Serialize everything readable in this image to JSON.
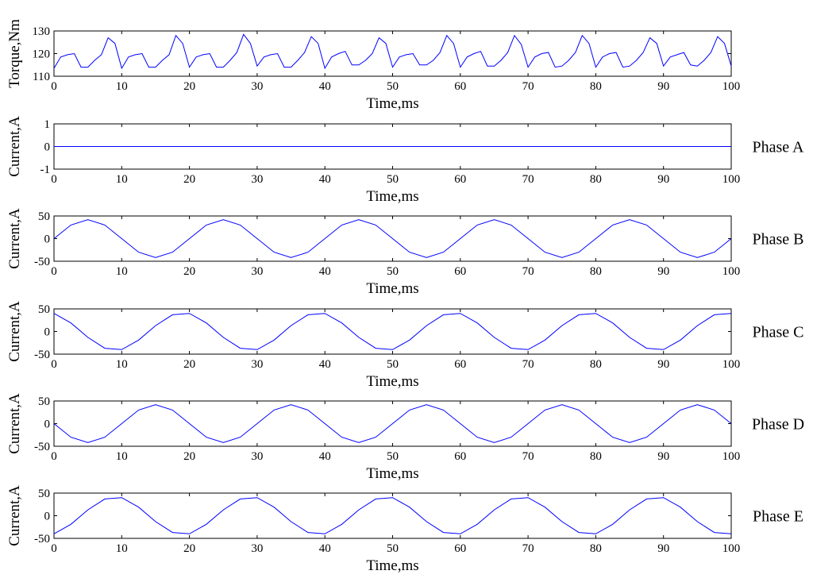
{
  "colors": {
    "trace": "#0000ff",
    "axes": "#000000",
    "background": "#ffffff"
  },
  "chart_data": [
    {
      "type": "line",
      "xlabel": "Time,ms",
      "ylabel": "Torque,Nm",
      "side_label": "",
      "xlim": [
        0,
        100
      ],
      "ylim": [
        110,
        130
      ],
      "xticks": [
        0,
        10,
        20,
        30,
        40,
        50,
        60,
        70,
        80,
        90,
        100
      ],
      "yticks": [
        110,
        120,
        130
      ],
      "grid": false,
      "series": [
        {
          "x": [
            0,
            1,
            2,
            3,
            4,
            5,
            6,
            7,
            8,
            9,
            10,
            11,
            12,
            13,
            14,
            15,
            16,
            17,
            18,
            19,
            20,
            21,
            22,
            23,
            24,
            25,
            26,
            27,
            28,
            29,
            30,
            31,
            32,
            33,
            34,
            35,
            36,
            37,
            38,
            39,
            40,
            41,
            42,
            43,
            44,
            45,
            46,
            47,
            48,
            49,
            50,
            51,
            52,
            53,
            54,
            55,
            56,
            57,
            58,
            59,
            60,
            61,
            62,
            63,
            64,
            65,
            66,
            67,
            68,
            69,
            70,
            71,
            72,
            73,
            74,
            75,
            76,
            77,
            78,
            79,
            80,
            81,
            82,
            83,
            84,
            85,
            86,
            87,
            88,
            89,
            90,
            91,
            92,
            93,
            94,
            95,
            96,
            97,
            98,
            99,
            100
          ],
          "y": [
            113.5,
            118.5,
            119.5,
            120,
            114,
            114,
            117,
            119.5,
            127,
            124.5,
            113.5,
            118.5,
            119.5,
            120,
            114,
            114,
            117,
            119.5,
            128,
            124.5,
            114,
            118.5,
            119.5,
            120,
            114,
            114,
            117,
            120.5,
            128.5,
            124.5,
            114.5,
            118.5,
            119.5,
            120,
            114,
            114,
            117,
            120.5,
            127.5,
            124.5,
            113.5,
            118.5,
            120,
            121,
            115,
            115,
            117,
            120,
            127,
            124.5,
            114,
            118.5,
            119.5,
            120,
            115,
            115,
            117,
            120.5,
            128,
            124.5,
            114,
            118.5,
            120,
            121,
            114.5,
            114.5,
            117,
            120.5,
            128,
            124,
            114,
            118.5,
            120,
            120.5,
            114,
            114.5,
            117,
            120.5,
            128,
            124.5,
            114,
            118.5,
            120,
            120.5,
            114,
            114.5,
            117,
            120.5,
            127,
            124.5,
            114.5,
            118.5,
            119.5,
            120.5,
            115,
            114.5,
            117,
            120.5,
            127.5,
            124.5,
            114.5
          ]
        }
      ]
    },
    {
      "type": "line",
      "xlabel": "Time,ms",
      "ylabel": "Current,A",
      "side_label": "Phase A",
      "xlim": [
        0,
        100
      ],
      "ylim": [
        -1,
        1
      ],
      "xticks": [
        0,
        10,
        20,
        30,
        40,
        50,
        60,
        70,
        80,
        90,
        100
      ],
      "yticks": [
        -1,
        0,
        1
      ],
      "grid": false,
      "series": [
        {
          "x": [
            0,
            100
          ],
          "y": [
            0,
            0
          ]
        }
      ]
    },
    {
      "type": "line",
      "xlabel": "Time,ms",
      "ylabel": "Current,A",
      "side_label": "Phase B",
      "xlim": [
        0,
        100
      ],
      "ylim": [
        -50,
        50
      ],
      "xticks": [
        0,
        10,
        20,
        30,
        40,
        50,
        60,
        70,
        80,
        90,
        100
      ],
      "yticks": [
        -50,
        0,
        50
      ],
      "grid": false,
      "series": [
        {
          "x": [
            0,
            2.5,
            5,
            7.5,
            10,
            12.5,
            15,
            17.5,
            20,
            22.5,
            25,
            27.5,
            30,
            32.5,
            35,
            37.5,
            40,
            42.5,
            45,
            47.5,
            50,
            52.5,
            55,
            57.5,
            60,
            62.5,
            65,
            67.5,
            70,
            72.5,
            75,
            77.5,
            80,
            82.5,
            85,
            87.5,
            90,
            92.5,
            95,
            97.5,
            100
          ],
          "y": [
            0,
            30,
            42,
            30,
            0,
            -30,
            -42,
            -30,
            0,
            30,
            42,
            30,
            0,
            -30,
            -42,
            -30,
            0,
            30,
            42,
            30,
            0,
            -30,
            -42,
            -30,
            0,
            30,
            42,
            30,
            0,
            -30,
            -42,
            -30,
            0,
            30,
            42,
            30,
            0,
            -30,
            -42,
            -30,
            0
          ]
        }
      ]
    },
    {
      "type": "line",
      "xlabel": "Time,ms",
      "ylabel": "Current,A",
      "side_label": "Phase C",
      "xlim": [
        0,
        100
      ],
      "ylim": [
        -50,
        50
      ],
      "xticks": [
        0,
        10,
        20,
        30,
        40,
        50,
        60,
        70,
        80,
        90,
        100
      ],
      "yticks": [
        -50,
        0,
        50
      ],
      "grid": false,
      "series": [
        {
          "x": [
            0,
            2.5,
            5,
            7.5,
            10,
            12.5,
            15,
            17.5,
            20,
            22.5,
            25,
            27.5,
            30,
            32.5,
            35,
            37.5,
            40,
            42.5,
            45,
            47.5,
            50,
            52.5,
            55,
            57.5,
            60,
            62.5,
            65,
            67.5,
            70,
            72.5,
            75,
            77.5,
            80,
            82.5,
            85,
            87.5,
            90,
            92.5,
            95,
            97.5,
            100
          ],
          "y": [
            40,
            19,
            -13,
            -37,
            -40,
            -19,
            13,
            37,
            40,
            19,
            -13,
            -37,
            -40,
            -19,
            13,
            37,
            40,
            19,
            -13,
            -37,
            -40,
            -19,
            13,
            37,
            40,
            19,
            -13,
            -37,
            -40,
            -19,
            13,
            37,
            40,
            19,
            -13,
            -37,
            -40,
            -19,
            13,
            37,
            40
          ]
        }
      ]
    },
    {
      "type": "line",
      "xlabel": "Time,ms",
      "ylabel": "Current,A",
      "side_label": "Phase D",
      "xlim": [
        0,
        100
      ],
      "ylim": [
        -50,
        50
      ],
      "xticks": [
        0,
        10,
        20,
        30,
        40,
        50,
        60,
        70,
        80,
        90,
        100
      ],
      "yticks": [
        -50,
        0,
        50
      ],
      "grid": false,
      "series": [
        {
          "x": [
            0,
            2.5,
            5,
            7.5,
            10,
            12.5,
            15,
            17.5,
            20,
            22.5,
            25,
            27.5,
            30,
            32.5,
            35,
            37.5,
            40,
            42.5,
            45,
            47.5,
            50,
            52.5,
            55,
            57.5,
            60,
            62.5,
            65,
            67.5,
            70,
            72.5,
            75,
            77.5,
            80,
            82.5,
            85,
            87.5,
            90,
            92.5,
            95,
            97.5,
            100
          ],
          "y": [
            0,
            -30,
            -42,
            -30,
            0,
            30,
            42,
            30,
            0,
            -30,
            -42,
            -30,
            0,
            30,
            42,
            30,
            0,
            -30,
            -42,
            -30,
            0,
            30,
            42,
            30,
            0,
            -30,
            -42,
            -30,
            0,
            30,
            42,
            30,
            0,
            -30,
            -42,
            -30,
            0,
            30,
            42,
            30,
            0
          ]
        }
      ]
    },
    {
      "type": "line",
      "xlabel": "Time,ms",
      "ylabel": "Current,A",
      "side_label": "Phase E",
      "xlim": [
        0,
        100
      ],
      "ylim": [
        -50,
        50
      ],
      "xticks": [
        0,
        10,
        20,
        30,
        40,
        50,
        60,
        70,
        80,
        90,
        100
      ],
      "yticks": [
        -50,
        0,
        50
      ],
      "grid": false,
      "series": [
        {
          "x": [
            0,
            2.5,
            5,
            7.5,
            10,
            12.5,
            15,
            17.5,
            20,
            22.5,
            25,
            27.5,
            30,
            32.5,
            35,
            37.5,
            40,
            42.5,
            45,
            47.5,
            50,
            52.5,
            55,
            57.5,
            60,
            62.5,
            65,
            67.5,
            70,
            72.5,
            75,
            77.5,
            80,
            82.5,
            85,
            87.5,
            90,
            92.5,
            95,
            97.5,
            100
          ],
          "y": [
            -40,
            -19,
            13,
            37,
            40,
            19,
            -13,
            -37,
            -40,
            -19,
            13,
            37,
            40,
            19,
            -13,
            -37,
            -40,
            -19,
            13,
            37,
            40,
            19,
            -13,
            -37,
            -40,
            -19,
            13,
            37,
            40,
            19,
            -13,
            -37,
            -40,
            -19,
            13,
            37,
            40,
            19,
            -13,
            -37,
            -40
          ]
        }
      ]
    }
  ]
}
